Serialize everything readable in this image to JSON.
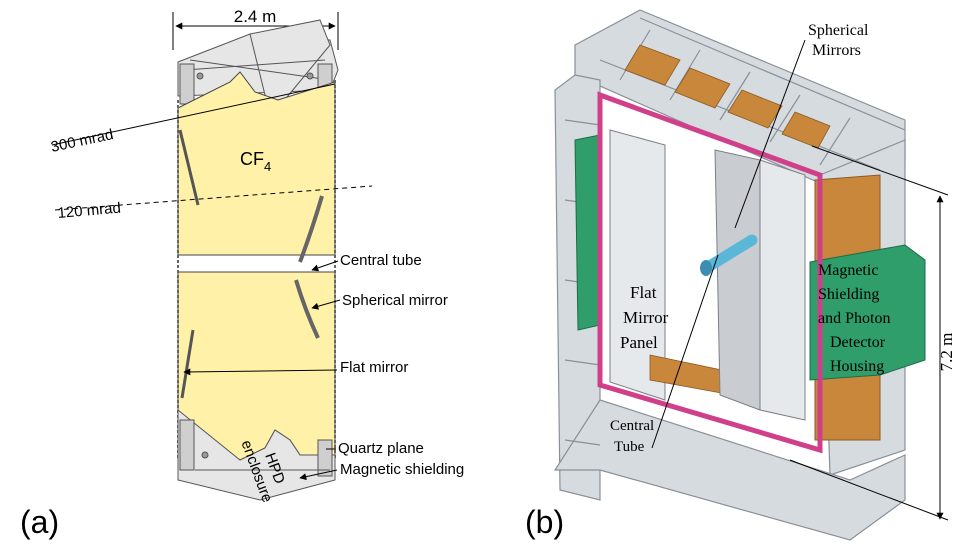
{
  "panel_a": {
    "label": "(a)",
    "width_label": "2.4 m",
    "gas_label": "CF",
    "gas_subscript": "4",
    "angle_upper": "300 mrad",
    "angle_lower": "120 mrad",
    "callouts": {
      "central_tube": "Central tube",
      "spherical_mirror": "Spherical mirror",
      "flat_mirror": "Flat mirror",
      "quartz_plane": "Quartz plane",
      "magnetic_shielding": "Magnetic shielding",
      "hpd_line1": "HPD",
      "hpd_line2": "enclosure"
    },
    "colors": {
      "gas_fill": "#fff2a8",
      "frame": "#7a7a7a"
    }
  },
  "panel_b": {
    "label": "(b)",
    "spherical_mirrors_line1": "Spherical",
    "spherical_mirrors_line2": "Mirrors",
    "flat_panel_line1": "Flat",
    "flat_panel_line2": "Mirror",
    "flat_panel_line3": "Panel",
    "magnetic_line1": "Magnetic",
    "magnetic_line2": "Shielding",
    "magnetic_line3": "and Photon",
    "magnetic_line4": "Detector",
    "magnetic_line5": "Housing",
    "central_tube_line1": "Central",
    "central_tube_line2": "Tube",
    "height_label": "7.2 m",
    "colors": {
      "frame": "#d6dbe0",
      "magenta": "#d0408a",
      "green": "#2f9e6a",
      "orange": "#c8873a",
      "tube": "#5bb7d8"
    }
  }
}
